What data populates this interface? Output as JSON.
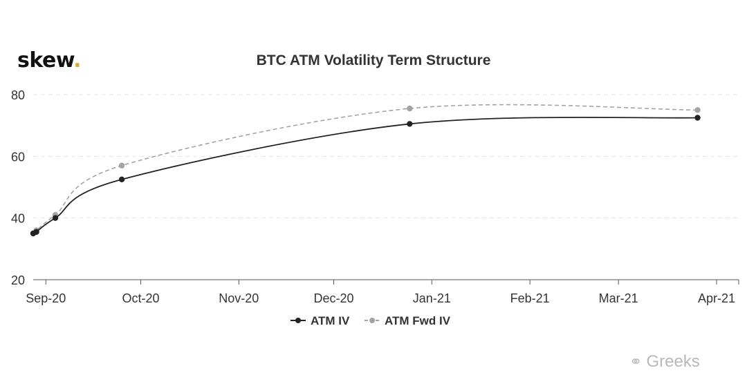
{
  "brand": {
    "logo_text": "skew",
    "logo_dot": "."
  },
  "watermark": {
    "icon": "wechat-icon",
    "text": "Greeks"
  },
  "chart_data": {
    "type": "line",
    "title": "BTC ATM Volatility Term Structure",
    "xlabel": "",
    "ylabel": "",
    "ylim": [
      20,
      80
    ],
    "yticks": [
      20,
      40,
      60,
      80
    ],
    "xticks": [
      "Sep-20",
      "Oct-20",
      "Nov-20",
      "Dec-20",
      "Jan-21",
      "Feb-21",
      "Mar-21",
      "Apr-21"
    ],
    "xlim": [
      "2020-08-28",
      "2021-04-08"
    ],
    "grid": true,
    "legend_position": "bottom",
    "series": [
      {
        "name": "ATM IV",
        "color": "#222222",
        "style": "solid",
        "points": [
          {
            "x": "2020-08-28",
            "y": 35.0
          },
          {
            "x": "2020-08-29",
            "y": 35.5
          },
          {
            "x": "2020-09-04",
            "y": 40.0
          },
          {
            "x": "2020-09-25",
            "y": 52.5
          },
          {
            "x": "2020-12-25",
            "y": 70.5
          },
          {
            "x": "2021-03-26",
            "y": 72.5
          }
        ]
      },
      {
        "name": "ATM Fwd IV",
        "color": "#a0a4a8",
        "style": "dashed",
        "points": [
          {
            "x": "2020-08-28",
            "y": 35.0
          },
          {
            "x": "2020-08-29",
            "y": 36.0
          },
          {
            "x": "2020-09-04",
            "y": 41.0
          },
          {
            "x": "2020-09-25",
            "y": 57.0
          },
          {
            "x": "2020-12-25",
            "y": 75.5
          },
          {
            "x": "2021-03-26",
            "y": 75.0
          }
        ]
      }
    ]
  }
}
